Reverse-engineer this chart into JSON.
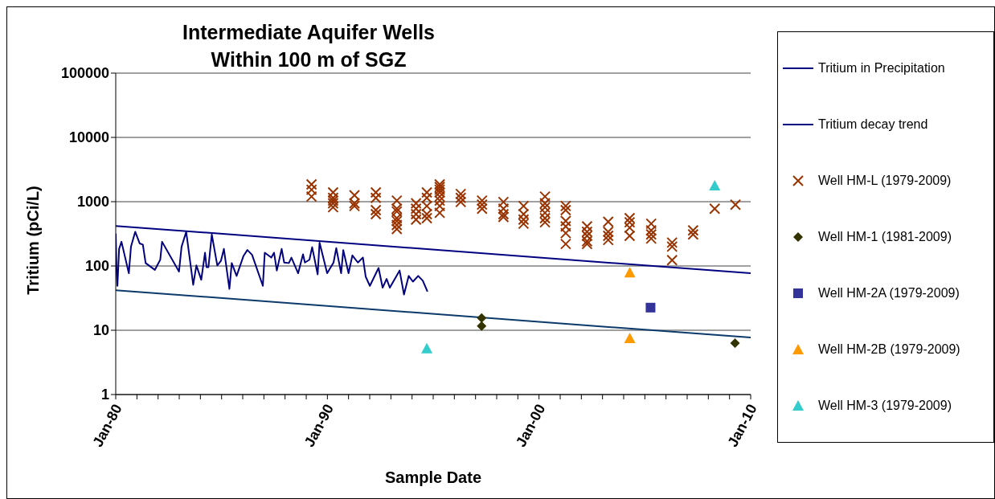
{
  "chart_data": {
    "type": "scatter",
    "title": "Intermediate Aquifer Wells\nWithin 100 m of SGZ",
    "xlabel": "Sample Date",
    "ylabel": "Tritium (pCi/L)",
    "xlim": [
      "1980-01-01",
      "2010-01-01"
    ],
    "ylim": [
      1,
      100000
    ],
    "log": "y",
    "grid": "y",
    "legend": "right",
    "line_style": "solid",
    "yticks": [
      1,
      10,
      100,
      1000,
      10000,
      100000
    ],
    "xticks": [
      {
        "value": "1980-01-01",
        "label": "Jan-80"
      },
      {
        "value": "1981-01-01",
        "label": null
      },
      {
        "value": "1982-01-01",
        "label": null
      },
      {
        "value": "1983-01-01",
        "label": null
      },
      {
        "value": "1984-01-01",
        "label": null
      },
      {
        "value": "1985-01-01",
        "label": null
      },
      {
        "value": "1986-01-01",
        "label": null
      },
      {
        "value": "1987-01-01",
        "label": null
      },
      {
        "value": "1988-01-01",
        "label": null
      },
      {
        "value": "1989-01-01",
        "label": null
      },
      {
        "value": "1990-01-01",
        "label": "Jan-90"
      },
      {
        "value": "1991-01-01",
        "label": null
      },
      {
        "value": "1992-01-01",
        "label": null
      },
      {
        "value": "1993-01-01",
        "label": null
      },
      {
        "value": "1994-01-01",
        "label": null
      },
      {
        "value": "1995-01-01",
        "label": null
      },
      {
        "value": "1996-01-01",
        "label": null
      },
      {
        "value": "1997-01-01",
        "label": null
      },
      {
        "value": "1998-01-01",
        "label": null
      },
      {
        "value": "1999-01-01",
        "label": null
      },
      {
        "value": "2000-01-01",
        "label": "Jan-00"
      },
      {
        "value": "2001-01-01",
        "label": null
      },
      {
        "value": "2002-01-01",
        "label": null
      },
      {
        "value": "2003-01-01",
        "label": null
      },
      {
        "value": "2004-01-01",
        "label": null
      },
      {
        "value": "2005-01-01",
        "label": null
      },
      {
        "value": "2006-01-01",
        "label": null
      },
      {
        "value": "2007-01-01",
        "label": null
      },
      {
        "value": "2008-01-01",
        "label": null
      },
      {
        "value": "2009-01-01",
        "label": null
      },
      {
        "value": "2010-01-01",
        "label": "Jan-10"
      }
    ],
    "series": [
      {
        "name": "Tritium in Precipitation",
        "type": "line",
        "marker": "none",
        "color": "#000080",
        "x": [
          "1980-01-01",
          "1980-01-16",
          "1980-01-30",
          "1980-02-28",
          "1980-04-09",
          "1980-08-14",
          "1980-09-20",
          "1980-12-02",
          "1981-02-17",
          "1981-04-13",
          "1981-05-31",
          "1981-11-07",
          "1982-02-07",
          "1982-03-11",
          "1982-12-28",
          "1983-02-10",
          "1983-05-01",
          "1983-08-30",
          "1983-10-24",
          "1984-01-16",
          "1984-03-21",
          "1984-04-16",
          "1984-05-19",
          "1984-07-16",
          "1984-10-19",
          "1984-12-20",
          "1985-02-10",
          "1985-05-16",
          "1985-06-25",
          "1985-09-17",
          "1986-01-12",
          "1986-03-22",
          "1986-06-11",
          "1986-12-14",
          "1987-01-16",
          "1987-05-09",
          "1987-06-25",
          "1987-08-12",
          "1987-11-04",
          "1987-12-17",
          "1988-03-07",
          "1988-04-20",
          "1988-08-14",
          "1988-11-06",
          "1988-12-09",
          "1989-02-25",
          "1989-04-13",
          "1989-07-17",
          "1989-08-19",
          "1989-12-28",
          "1990-04-17",
          "1990-06-03",
          "1990-08-26",
          "1990-10-02",
          "1991-01-01",
          "1991-03-08",
          "1991-06-11",
          "1991-09-06",
          "1991-10-24",
          "1992-01-04",
          "1992-06-02",
          "1992-08-11",
          "1992-10-19",
          "1992-12-13",
          "1993-05-31",
          "1993-08-15",
          "1993-11-04",
          "1994-01-16",
          "1994-04-17",
          "1994-07-06",
          "1994-09-24"
        ],
        "values": [
          318,
          79,
          49,
          184,
          238,
          77,
          199,
          340,
          224,
          215,
          111,
          87,
          125,
          238,
          82,
          199,
          340,
          51,
          102,
          61,
          161,
          96,
          96,
          309,
          102,
          120,
          184,
          44,
          111,
          70,
          142,
          177,
          149,
          49,
          161,
          135,
          161,
          85,
          184,
          113,
          111,
          135,
          77,
          152,
          113,
          125,
          196,
          74,
          231,
          77,
          113,
          190,
          77,
          177,
          77,
          146,
          113,
          135,
          68,
          49,
          93,
          46,
          63,
          46,
          85,
          36,
          70,
          57,
          70,
          59,
          40
        ]
      },
      {
        "name": "Tritium decay trend",
        "type": "line",
        "marker": "none",
        "color": "#000080",
        "x": [
          "1980-01-01",
          "2010-01-01"
        ],
        "values": [
          420,
          77
        ]
      },
      {
        "type": "line",
        "marker": "none",
        "color": "#0b3a6b",
        "x": [
          "1980-01-01",
          "2010-01-01"
        ],
        "values": [
          42,
          7.7
        ]
      },
      {
        "name": "Well HM-L (1979-2009)",
        "marker": "cross",
        "color": "#993300",
        "x": [
          "1989-04-02",
          "1989-04-02",
          "1989-04-02",
          "1990-04-09",
          "1990-04-09",
          "1990-04-09",
          "1990-04-09",
          "1990-04-09",
          "1991-04-13",
          "1991-04-13",
          "1991-04-13",
          "1992-04-16",
          "1992-04-16",
          "1992-04-16",
          "1992-04-16",
          "1993-04-13",
          "1993-04-13",
          "1993-04-13",
          "1993-04-13",
          "1993-04-13",
          "1993-04-13",
          "1993-04-13",
          "1994-03-11",
          "1994-03-11",
          "1994-03-11",
          "1994-03-11",
          "1994-09-13",
          "1994-09-13",
          "1994-09-13",
          "1994-09-13",
          "1994-09-13",
          "1995-04-23",
          "1995-04-23",
          "1995-04-23",
          "1995-04-23",
          "1995-04-23",
          "1995-04-23",
          "1995-04-23",
          "1995-04-23",
          "1996-04-20",
          "1996-04-20",
          "1996-04-20",
          "1997-04-23",
          "1997-04-23",
          "1997-04-23",
          "1998-04-27",
          "1998-04-27",
          "1998-04-27",
          "1998-04-27",
          "1999-04-09",
          "1999-04-09",
          "1999-04-09",
          "1999-04-09",
          "2000-04-13",
          "2000-04-13",
          "2000-04-13",
          "2000-04-13",
          "2000-04-13",
          "2000-04-13",
          "2001-04-06",
          "2001-04-06",
          "2001-04-06",
          "2001-04-06",
          "2001-04-06",
          "2001-04-06",
          "2002-04-09",
          "2002-04-09",
          "2002-04-09",
          "2002-04-09",
          "2002-04-09",
          "2003-04-09",
          "2003-04-09",
          "2003-04-09",
          "2003-04-09",
          "2004-04-13",
          "2004-04-13",
          "2004-04-13",
          "2004-04-13",
          "2005-04-20",
          "2005-04-20",
          "2005-04-20",
          "2005-04-20",
          "2006-04-16",
          "2006-04-16",
          "2006-04-16",
          "2007-04-13",
          "2007-04-13",
          "2008-04-20",
          "2009-04-13"
        ],
        "values": [
          1860,
          1535,
          1200,
          1390,
          1146,
          1040,
          943,
          820,
          1260,
          943,
          856,
          1390,
          1146,
          740,
          640,
          1040,
          777,
          705,
          555,
          500,
          434,
          375,
          943,
          777,
          640,
          527,
          1390,
          1146,
          856,
          640,
          555,
          1860,
          1690,
          1535,
          1390,
          1200,
          1040,
          856,
          670,
          1320,
          1146,
          990,
          1040,
          900,
          777,
          990,
          777,
          640,
          580,
          856,
          640,
          527,
          455,
          1200,
          943,
          815,
          671,
          553,
          478,
          856,
          740,
          501,
          413,
          324,
          220,
          413,
          340,
          294,
          242,
          220,
          487,
          340,
          294,
          254,
          553,
          478,
          394,
          294,
          455,
          357,
          309,
          267,
          231,
          200,
          123,
          357,
          309,
          777,
          898
        ]
      },
      {
        "name": "Well HM-1 (1981-2009)",
        "marker": "diamond",
        "color": "#333300",
        "x": [
          "1997-04-16",
          "1997-04-16",
          "2009-04-06"
        ],
        "values": [
          15.5,
          11.6,
          6.3
        ]
      },
      {
        "name": "Well HM-2A (1979-2009)",
        "marker": "square",
        "color": "#333399",
        "x": [
          "2005-04-09"
        ],
        "values": [
          22.5
        ]
      },
      {
        "name": "Well HM-2B (1979-2009)",
        "marker": "triangle",
        "color": "#ff9900",
        "x": [
          "2004-04-16",
          "2004-04-16"
        ],
        "values": [
          79,
          7.5
        ]
      },
      {
        "name": "Well HM-3 (1979-2009)",
        "marker": "triangle",
        "color": "#33cccc",
        "x": [
          "1994-09-13",
          "2008-04-20"
        ],
        "values": [
          5.2,
          1775
        ]
      }
    ]
  }
}
